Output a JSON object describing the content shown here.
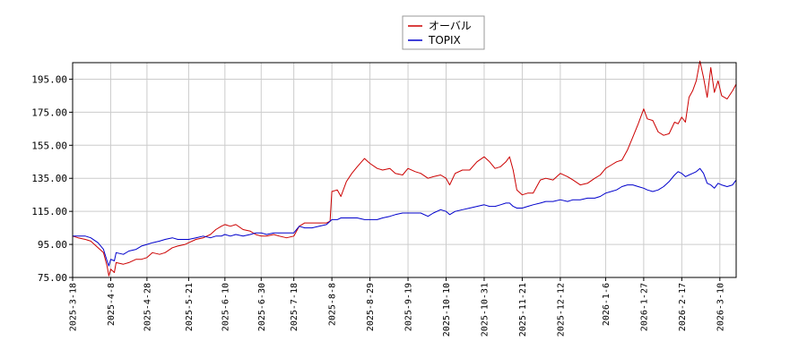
{
  "chart_data": {
    "type": "line",
    "title": "",
    "xlabel": "",
    "ylabel": "",
    "x_start": "2025-03-18",
    "x_end": "2026-03-19",
    "ylim": [
      75,
      205
    ],
    "y_ticks": [
      75,
      95,
      115,
      135,
      155,
      175,
      195
    ],
    "y_tick_labels": [
      "75.00",
      "95.00",
      "115.00",
      "135.00",
      "155.00",
      "175.00",
      "195.00"
    ],
    "x_tick_dates": [
      "2025-03-18",
      "2025-04-08",
      "2025-04-28",
      "2025-05-21",
      "2025-06-10",
      "2025-06-30",
      "2025-07-18",
      "2025-08-08",
      "2025-08-29",
      "2025-09-19",
      "2025-10-10",
      "2025-10-31",
      "2025-11-21",
      "2025-12-12",
      "2026-01-06",
      "2026-01-27",
      "2026-02-17",
      "2026-03-10"
    ],
    "x_tick_labels": [
      "2025-3-18",
      "2025-4-8",
      "2025-4-28",
      "2025-5-21",
      "2025-6-10",
      "2025-6-30",
      "2025-7-18",
      "2025-8-8",
      "2025-8-29",
      "2025-9-19",
      "2025-10-10",
      "2025-10-31",
      "2025-11-21",
      "2025-12-12",
      "2026-1-6",
      "2026-1-27",
      "2026-2-17",
      "2026-3-10"
    ],
    "grid": true,
    "legend_position": "top-center",
    "series": [
      {
        "name": "オーバル",
        "color": "#cc0000",
        "points": [
          [
            "2025-03-18",
            100
          ],
          [
            "2025-03-21",
            99
          ],
          [
            "2025-03-25",
            98
          ],
          [
            "2025-03-28",
            97
          ],
          [
            "2025-04-01",
            93
          ],
          [
            "2025-04-04",
            90
          ],
          [
            "2025-04-06",
            82
          ],
          [
            "2025-04-07",
            76
          ],
          [
            "2025-04-08",
            80
          ],
          [
            "2025-04-10",
            78
          ],
          [
            "2025-04-11",
            84
          ],
          [
            "2025-04-15",
            83
          ],
          [
            "2025-04-18",
            84
          ],
          [
            "2025-04-22",
            86
          ],
          [
            "2025-04-25",
            86
          ],
          [
            "2025-04-28",
            87
          ],
          [
            "2025-05-01",
            90
          ],
          [
            "2025-05-05",
            89
          ],
          [
            "2025-05-08",
            90
          ],
          [
            "2025-05-12",
            93
          ],
          [
            "2025-05-15",
            94
          ],
          [
            "2025-05-19",
            95
          ],
          [
            "2025-05-21",
            96
          ],
          [
            "2025-05-25",
            98
          ],
          [
            "2025-05-29",
            99
          ],
          [
            "2025-06-02",
            101
          ],
          [
            "2025-06-05",
            104
          ],
          [
            "2025-06-08",
            106
          ],
          [
            "2025-06-10",
            107
          ],
          [
            "2025-06-13",
            106
          ],
          [
            "2025-06-16",
            107
          ],
          [
            "2025-06-20",
            104
          ],
          [
            "2025-06-24",
            103
          ],
          [
            "2025-06-27",
            101
          ],
          [
            "2025-06-30",
            100
          ],
          [
            "2025-07-03",
            100
          ],
          [
            "2025-07-07",
            101
          ],
          [
            "2025-07-10",
            100
          ],
          [
            "2025-07-14",
            99
          ],
          [
            "2025-07-18",
            100
          ],
          [
            "2025-07-21",
            106
          ],
          [
            "2025-07-24",
            108
          ],
          [
            "2025-07-28",
            108
          ],
          [
            "2025-08-01",
            108
          ],
          [
            "2025-08-05",
            108
          ],
          [
            "2025-08-07",
            109
          ],
          [
            "2025-08-08",
            127
          ],
          [
            "2025-08-11",
            128
          ],
          [
            "2025-08-13",
            124
          ],
          [
            "2025-08-16",
            133
          ],
          [
            "2025-08-19",
            138
          ],
          [
            "2025-08-22",
            142
          ],
          [
            "2025-08-26",
            147
          ],
          [
            "2025-08-29",
            144
          ],
          [
            "2025-09-02",
            141
          ],
          [
            "2025-09-05",
            140
          ],
          [
            "2025-09-09",
            141
          ],
          [
            "2025-09-12",
            138
          ],
          [
            "2025-09-16",
            137
          ],
          [
            "2025-09-19",
            141
          ],
          [
            "2025-09-23",
            139
          ],
          [
            "2025-09-26",
            138
          ],
          [
            "2025-09-30",
            135
          ],
          [
            "2025-10-03",
            136
          ],
          [
            "2025-10-07",
            137
          ],
          [
            "2025-10-10",
            135
          ],
          [
            "2025-10-12",
            131
          ],
          [
            "2025-10-15",
            138
          ],
          [
            "2025-10-19",
            140
          ],
          [
            "2025-10-23",
            140
          ],
          [
            "2025-10-27",
            145
          ],
          [
            "2025-10-31",
            148
          ],
          [
            "2025-11-03",
            145
          ],
          [
            "2025-11-06",
            141
          ],
          [
            "2025-11-09",
            142
          ],
          [
            "2025-11-12",
            145
          ],
          [
            "2025-11-14",
            148
          ],
          [
            "2025-11-16",
            140
          ],
          [
            "2025-11-18",
            128
          ],
          [
            "2025-11-21",
            125
          ],
          [
            "2025-11-24",
            126
          ],
          [
            "2025-11-27",
            126
          ],
          [
            "2025-12-01",
            134
          ],
          [
            "2025-12-04",
            135
          ],
          [
            "2025-12-08",
            134
          ],
          [
            "2025-12-12",
            138
          ],
          [
            "2025-12-16",
            136
          ],
          [
            "2025-12-19",
            134
          ],
          [
            "2025-12-23",
            131
          ],
          [
            "2025-12-27",
            132
          ],
          [
            "2025-12-31",
            135
          ],
          [
            "2026-01-03",
            137
          ],
          [
            "2026-01-06",
            141
          ],
          [
            "2026-01-09",
            143
          ],
          [
            "2026-01-12",
            145
          ],
          [
            "2026-01-15",
            146
          ],
          [
            "2026-01-18",
            152
          ],
          [
            "2026-01-21",
            160
          ],
          [
            "2026-01-24",
            168
          ],
          [
            "2026-01-27",
            177
          ],
          [
            "2026-01-29",
            171
          ],
          [
            "2026-02-01",
            170
          ],
          [
            "2026-02-04",
            163
          ],
          [
            "2026-02-07",
            161
          ],
          [
            "2026-02-10",
            162
          ],
          [
            "2026-02-13",
            169
          ],
          [
            "2026-02-15",
            168
          ],
          [
            "2026-02-17",
            172
          ],
          [
            "2026-02-19",
            169
          ],
          [
            "2026-02-21",
            184
          ],
          [
            "2026-02-23",
            188
          ],
          [
            "2026-02-25",
            194
          ],
          [
            "2026-02-27",
            206
          ],
          [
            "2026-03-01",
            196
          ],
          [
            "2026-03-03",
            184
          ],
          [
            "2026-03-05",
            202
          ],
          [
            "2026-03-07",
            187
          ],
          [
            "2026-03-09",
            194
          ],
          [
            "2026-03-11",
            185
          ],
          [
            "2026-03-14",
            183
          ],
          [
            "2026-03-17",
            188
          ],
          [
            "2026-03-19",
            192
          ]
        ]
      },
      {
        "name": "TOPIX",
        "color": "#0000cc",
        "points": [
          [
            "2025-03-18",
            100
          ],
          [
            "2025-03-21",
            100
          ],
          [
            "2025-03-25",
            100
          ],
          [
            "2025-03-28",
            99
          ],
          [
            "2025-04-01",
            96
          ],
          [
            "2025-04-04",
            92
          ],
          [
            "2025-04-06",
            85
          ],
          [
            "2025-04-07",
            82
          ],
          [
            "2025-04-08",
            86
          ],
          [
            "2025-04-10",
            85
          ],
          [
            "2025-04-11",
            90
          ],
          [
            "2025-04-15",
            89
          ],
          [
            "2025-04-18",
            91
          ],
          [
            "2025-04-22",
            92
          ],
          [
            "2025-04-25",
            94
          ],
          [
            "2025-04-28",
            95
          ],
          [
            "2025-05-01",
            96
          ],
          [
            "2025-05-05",
            97
          ],
          [
            "2025-05-08",
            98
          ],
          [
            "2025-05-12",
            99
          ],
          [
            "2025-05-15",
            98
          ],
          [
            "2025-05-19",
            98
          ],
          [
            "2025-05-21",
            98
          ],
          [
            "2025-05-25",
            99
          ],
          [
            "2025-05-29",
            100
          ],
          [
            "2025-06-02",
            99
          ],
          [
            "2025-06-05",
            100
          ],
          [
            "2025-06-08",
            100
          ],
          [
            "2025-06-10",
            101
          ],
          [
            "2025-06-13",
            100
          ],
          [
            "2025-06-16",
            101
          ],
          [
            "2025-06-20",
            100
          ],
          [
            "2025-06-24",
            101
          ],
          [
            "2025-06-27",
            102
          ],
          [
            "2025-06-30",
            102
          ],
          [
            "2025-07-03",
            101
          ],
          [
            "2025-07-07",
            102
          ],
          [
            "2025-07-10",
            102
          ],
          [
            "2025-07-14",
            102
          ],
          [
            "2025-07-18",
            102
          ],
          [
            "2025-07-21",
            106
          ],
          [
            "2025-07-24",
            105
          ],
          [
            "2025-07-28",
            105
          ],
          [
            "2025-08-01",
            106
          ],
          [
            "2025-08-05",
            107
          ],
          [
            "2025-08-07",
            109
          ],
          [
            "2025-08-08",
            110
          ],
          [
            "2025-08-11",
            110
          ],
          [
            "2025-08-13",
            111
          ],
          [
            "2025-08-16",
            111
          ],
          [
            "2025-08-19",
            111
          ],
          [
            "2025-08-22",
            111
          ],
          [
            "2025-08-26",
            110
          ],
          [
            "2025-08-29",
            110
          ],
          [
            "2025-09-02",
            110
          ],
          [
            "2025-09-05",
            111
          ],
          [
            "2025-09-09",
            112
          ],
          [
            "2025-09-12",
            113
          ],
          [
            "2025-09-16",
            114
          ],
          [
            "2025-09-19",
            114
          ],
          [
            "2025-09-23",
            114
          ],
          [
            "2025-09-26",
            114
          ],
          [
            "2025-09-30",
            112
          ],
          [
            "2025-10-03",
            114
          ],
          [
            "2025-10-07",
            116
          ],
          [
            "2025-10-10",
            115
          ],
          [
            "2025-10-12",
            113
          ],
          [
            "2025-10-15",
            115
          ],
          [
            "2025-10-19",
            116
          ],
          [
            "2025-10-23",
            117
          ],
          [
            "2025-10-27",
            118
          ],
          [
            "2025-10-31",
            119
          ],
          [
            "2025-11-03",
            118
          ],
          [
            "2025-11-06",
            118
          ],
          [
            "2025-11-09",
            119
          ],
          [
            "2025-11-12",
            120
          ],
          [
            "2025-11-14",
            120
          ],
          [
            "2025-11-16",
            118
          ],
          [
            "2025-11-18",
            117
          ],
          [
            "2025-11-21",
            117
          ],
          [
            "2025-11-24",
            118
          ],
          [
            "2025-11-27",
            119
          ],
          [
            "2025-12-01",
            120
          ],
          [
            "2025-12-04",
            121
          ],
          [
            "2025-12-08",
            121
          ],
          [
            "2025-12-12",
            122
          ],
          [
            "2025-12-16",
            121
          ],
          [
            "2025-12-19",
            122
          ],
          [
            "2025-12-23",
            122
          ],
          [
            "2025-12-27",
            123
          ],
          [
            "2025-12-31",
            123
          ],
          [
            "2026-01-03",
            124
          ],
          [
            "2026-01-06",
            126
          ],
          [
            "2026-01-09",
            127
          ],
          [
            "2026-01-12",
            128
          ],
          [
            "2026-01-15",
            130
          ],
          [
            "2026-01-18",
            131
          ],
          [
            "2026-01-21",
            131
          ],
          [
            "2026-01-24",
            130
          ],
          [
            "2026-01-27",
            129
          ],
          [
            "2026-01-29",
            128
          ],
          [
            "2026-02-01",
            127
          ],
          [
            "2026-02-04",
            128
          ],
          [
            "2026-02-07",
            130
          ],
          [
            "2026-02-10",
            133
          ],
          [
            "2026-02-13",
            137
          ],
          [
            "2026-02-15",
            139
          ],
          [
            "2026-02-17",
            138
          ],
          [
            "2026-02-19",
            136
          ],
          [
            "2026-02-21",
            137
          ],
          [
            "2026-02-23",
            138
          ],
          [
            "2026-02-25",
            139
          ],
          [
            "2026-02-27",
            141
          ],
          [
            "2026-03-01",
            138
          ],
          [
            "2026-03-03",
            132
          ],
          [
            "2026-03-05",
            131
          ],
          [
            "2026-03-07",
            129
          ],
          [
            "2026-03-09",
            132
          ],
          [
            "2026-03-11",
            131
          ],
          [
            "2026-03-14",
            130
          ],
          [
            "2026-03-17",
            131
          ],
          [
            "2026-03-19",
            134
          ]
        ]
      }
    ]
  }
}
